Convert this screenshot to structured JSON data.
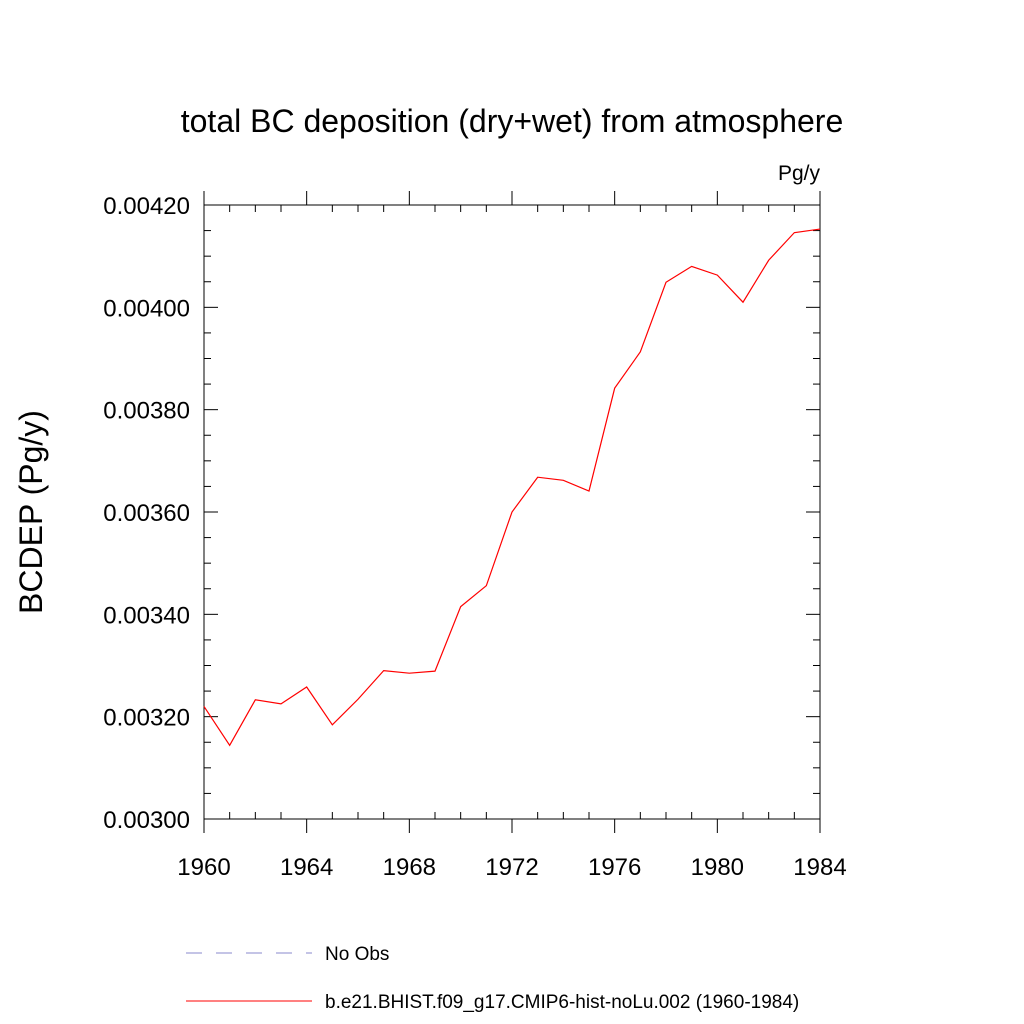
{
  "chart_data": {
    "type": "line",
    "title": "total BC deposition (dry+wet) from atmosphere",
    "units_label": "Pg/y",
    "ylabel": "BCDEP  (Pg/y)",
    "xlabel": "",
    "xlim": [
      1960,
      1984
    ],
    "ylim": [
      0.003,
      0.0042
    ],
    "xticks": [
      1960,
      1964,
      1968,
      1972,
      1976,
      1980,
      1984
    ],
    "xtick_labels": [
      "1960",
      "1964",
      "1968",
      "1972",
      "1976",
      "1980",
      "1984"
    ],
    "yticks": [
      0.003,
      0.0032,
      0.0034,
      0.0036,
      0.0038,
      0.004,
      0.0042
    ],
    "ytick_labels": [
      "0.00300",
      "0.00320",
      "0.00340",
      "0.00360",
      "0.00380",
      "0.00400",
      "0.00420"
    ],
    "grid": false,
    "legend_position": "bottom",
    "series": [
      {
        "name": "b.e21.BHIST.f09_g17.CMIP6-hist-noLu.002 (1960-1984)",
        "color": "#ff0000",
        "style": "solid",
        "x": [
          1960,
          1961,
          1962,
          1963,
          1964,
          1965,
          1966,
          1967,
          1968,
          1969,
          1970,
          1971,
          1972,
          1973,
          1974,
          1975,
          1976,
          1977,
          1978,
          1979,
          1980,
          1981,
          1982,
          1983,
          1984
        ],
        "values": [
          0.00322,
          0.003144,
          0.003233,
          0.003225,
          0.003258,
          0.003184,
          0.003234,
          0.00329,
          0.003285,
          0.003289,
          0.003415,
          0.003456,
          0.0036,
          0.003668,
          0.003662,
          0.003641,
          0.003842,
          0.003913,
          0.004049,
          0.00408,
          0.004063,
          0.00401,
          0.004092,
          0.004146,
          0.004153
        ]
      }
    ],
    "legend": [
      {
        "label": "No Obs",
        "color": "#8888cc",
        "style": "dashed"
      },
      {
        "label": "b.e21.BHIST.f09_g17.CMIP6-hist-noLu.002 (1960-1984)",
        "color": "#ff0000",
        "style": "solid"
      }
    ]
  }
}
